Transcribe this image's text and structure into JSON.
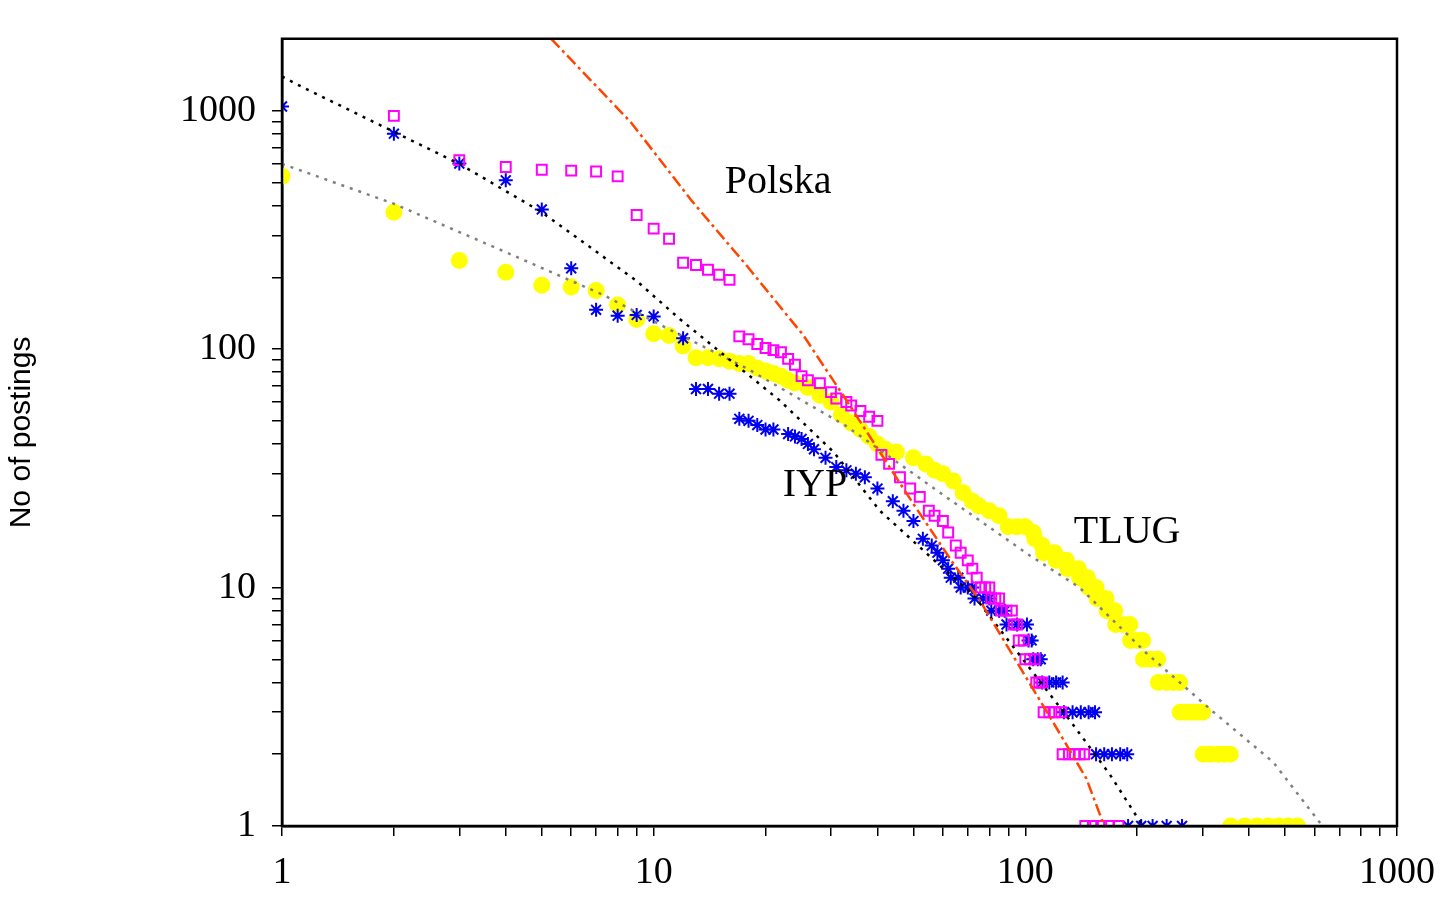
{
  "chart_data": {
    "type": "scatter",
    "ylabel": "No of postings",
    "log": "xy",
    "xlim": [
      1,
      1000
    ],
    "ylim": [
      1,
      2000
    ],
    "xticks": [
      1,
      {
        "value": 2,
        "label": null
      },
      {
        "value": 3,
        "label": null
      },
      {
        "value": 4,
        "label": null
      },
      {
        "value": 5,
        "label": null
      },
      {
        "value": 6,
        "label": null
      },
      {
        "value": 7,
        "label": null
      },
      {
        "value": 8,
        "label": null
      },
      {
        "value": 9,
        "label": null
      },
      10,
      {
        "value": 20,
        "label": null
      },
      {
        "value": 30,
        "label": null
      },
      {
        "value": 40,
        "label": null
      },
      {
        "value": 50,
        "label": null
      },
      {
        "value": 60,
        "label": null
      },
      {
        "value": 70,
        "label": null
      },
      {
        "value": 80,
        "label": null
      },
      {
        "value": 90,
        "label": null
      },
      100,
      {
        "value": 200,
        "label": null
      },
      {
        "value": 300,
        "label": null
      },
      {
        "value": 400,
        "label": null
      },
      {
        "value": 500,
        "label": null
      },
      {
        "value": 600,
        "label": null
      },
      {
        "value": 700,
        "label": null
      },
      {
        "value": 800,
        "label": null
      },
      {
        "value": 900,
        "label": null
      },
      1000
    ],
    "yticks": [
      1,
      {
        "value": 2,
        "label": null
      },
      {
        "value": 3,
        "label": null
      },
      {
        "value": 4,
        "label": null
      },
      {
        "value": 5,
        "label": null
      },
      {
        "value": 6,
        "label": null
      },
      {
        "value": 7,
        "label": null
      },
      {
        "value": 8,
        "label": null
      },
      {
        "value": 9,
        "label": null
      },
      10,
      {
        "value": 20,
        "label": null
      },
      {
        "value": 30,
        "label": null
      },
      {
        "value": 40,
        "label": null
      },
      {
        "value": 50,
        "label": null
      },
      {
        "value": 60,
        "label": null
      },
      {
        "value": 70,
        "label": null
      },
      {
        "value": 80,
        "label": null
      },
      {
        "value": 90,
        "label": null
      },
      100,
      {
        "value": 200,
        "label": null
      },
      {
        "value": 300,
        "label": null
      },
      {
        "value": 400,
        "label": null
      },
      {
        "value": 500,
        "label": null
      },
      {
        "value": 600,
        "label": null
      },
      {
        "value": 700,
        "label": null
      },
      {
        "value": 800,
        "label": null
      },
      {
        "value": 900,
        "label": null
      },
      1000
    ],
    "grid": false,
    "legend": false,
    "annotations": [
      "Polska",
      "IYP",
      "TLUG"
    ],
    "series": [
      {
        "type": "line",
        "color": "#ff4500",
        "line_style": "dashed",
        "marker": "none",
        "x": [
          5.3,
          8.7,
          12.7,
          17.7,
          25.3,
          33,
          40.6,
          49.9,
          63.6,
          75.5,
          92.5,
          118,
          146,
          163
        ],
        "values": [
          2000,
          890,
          416,
          226,
          114,
          61,
          37,
          22.5,
          12.8,
          8.8,
          5.2,
          2.77,
          1.58,
          1
        ]
      },
      {
        "type": "line",
        "color": "#000000",
        "line_style": "dotted",
        "marker": "none",
        "x": [
          1,
          1.14,
          3,
          5,
          9,
          11.8,
          21.8,
          30.5,
          40.6,
          58.8,
          72.5,
          96.6,
          129,
          169,
          207
        ],
        "values": [
          1390,
          1250,
          598,
          375,
          193,
          133,
          61,
          37,
          21,
          12.4,
          9.3,
          5.2,
          2.9,
          1.64,
          1
        ]
      },
      {
        "type": "line",
        "color": "#808080",
        "line_style": "dotted",
        "marker": "none",
        "x": [
          1,
          1.99,
          3.93,
          7.3,
          11,
          17.8,
          33,
          61.6,
          103,
          140,
          212,
          318,
          465,
          630
        ],
        "values": [
          598,
          408,
          258,
          169,
          121,
          83,
          47.5,
          23.8,
          13.6,
          10,
          5.3,
          3.04,
          1.85,
          1
        ]
      },
      {
        "color": "#ff00ff",
        "marker": "square",
        "x": [
          2,
          3,
          4,
          5,
          6,
          7,
          8,
          9,
          10,
          11,
          12,
          13,
          14,
          15,
          16,
          17,
          18,
          19,
          20,
          21,
          22,
          23,
          24,
          25,
          26,
          28,
          30,
          31,
          33,
          34,
          36,
          38,
          40,
          41,
          43,
          46,
          49,
          52,
          55,
          57,
          60,
          62,
          65,
          67,
          70,
          72,
          74,
          76,
          78,
          80,
          81,
          83,
          85,
          86,
          89,
          92,
          93,
          95,
          96,
          99,
          100,
          103,
          106,
          107,
          109,
          111,
          112,
          116,
          120,
          125,
          126,
          131,
          136,
          140,
          144,
          145,
          152,
          160,
          168,
          178
        ],
        "values": [
          950,
          620,
          580,
          565,
          560,
          555,
          530,
          365,
          320,
          290,
          230,
          225,
          215,
          205,
          195,
          113,
          110,
          105,
          101,
          99,
          97,
          91,
          86,
          77,
          74,
          72,
          66,
          62,
          60,
          58,
          55,
          52,
          50,
          36,
          33,
          29,
          26,
          24,
          21,
          20,
          19,
          17,
          15,
          14,
          13,
          12,
          11,
          10,
          10,
          10,
          9,
          9,
          9,
          8,
          8,
          8,
          7,
          7,
          6,
          6,
          5,
          5,
          5,
          4,
          4,
          4,
          3,
          3,
          3,
          3,
          2,
          2,
          2,
          2,
          2,
          1,
          1,
          1,
          1,
          1
        ]
      },
      {
        "color": "#0000ee",
        "marker": "cross",
        "x": [
          1,
          2,
          3,
          4,
          5,
          6,
          7,
          8,
          9,
          10,
          12,
          13,
          14,
          15,
          16,
          17,
          18,
          19,
          20,
          21,
          23,
          24,
          25,
          26,
          27,
          29,
          31,
          33,
          35,
          37,
          40,
          44,
          47,
          50,
          53,
          56,
          58,
          60,
          62,
          63,
          66,
          67,
          70,
          72,
          73,
          77,
          80,
          81,
          85,
          88,
          89,
          95,
          101,
          102,
          104,
          105,
          108,
          110,
          111,
          116,
          121,
          126,
          127,
          134,
          141,
          148,
          154,
          155,
          163,
          171,
          180,
          188,
          189,
          205,
          220,
          240,
          264
        ],
        "values": [
          1040,
          800,
          600,
          510,
          385,
          218,
          146,
          138,
          139,
          137,
          111,
          68,
          68,
          65,
          65,
          51,
          50,
          48,
          46,
          46,
          44,
          43,
          42,
          40,
          38,
          35,
          32,
          31,
          30,
          29,
          26,
          23,
          21,
          19,
          16,
          15,
          14,
          13,
          12,
          11,
          11,
          10,
          10,
          10,
          9,
          9,
          9,
          8,
          8,
          8,
          7,
          7,
          7,
          6,
          6,
          5,
          5,
          5,
          4,
          4,
          4,
          4,
          3,
          3,
          3,
          3,
          3,
          2,
          2,
          2,
          2,
          2,
          1,
          1,
          1,
          1,
          1
        ]
      },
      {
        "color": "#ffff00",
        "marker": "circle",
        "x": [
          1,
          2,
          3,
          4,
          5,
          6,
          7,
          8,
          9,
          10,
          11,
          12,
          13,
          14,
          15,
          16,
          17,
          18,
          19,
          20,
          21,
          22,
          23,
          24,
          26,
          28,
          30,
          32,
          34,
          36,
          38,
          40,
          42,
          45,
          50,
          54,
          57,
          60,
          64,
          68,
          72,
          75,
          80,
          85,
          90,
          95,
          100,
          105,
          106,
          111,
          112,
          120,
          121,
          129,
          130,
          139,
          140,
          147,
          148,
          155,
          156,
          165,
          166,
          174,
          175,
          183,
          191,
          192,
          200,
          207,
          208,
          217,
          227,
          228,
          240,
          250,
          260,
          261,
          270,
          280,
          290,
          300,
          301,
          315,
          330,
          343,
          356,
          357,
          390,
          420,
          450,
          480,
          510,
          540
        ],
        "values": [
          530,
          375,
          235,
          210,
          185,
          182,
          176,
          153,
          133,
          116,
          114,
          103,
          92,
          92,
          91,
          89,
          87,
          87,
          83,
          81,
          79,
          77,
          74,
          72,
          69,
          64,
          60,
          53,
          49,
          46,
          43,
          40,
          38,
          37,
          35,
          33,
          31,
          30,
          28,
          25,
          23,
          22,
          21,
          20,
          18,
          18,
          18,
          17,
          16,
          15,
          14,
          14,
          13,
          13,
          12,
          12,
          11,
          11,
          10,
          10,
          9,
          9,
          8,
          8,
          7,
          7,
          7,
          6,
          6,
          6,
          5,
          5,
          5,
          4,
          4,
          4,
          4,
          3,
          3,
          3,
          3,
          3,
          2,
          2,
          2,
          2,
          2,
          1,
          1,
          1,
          1,
          1,
          1,
          1
        ]
      }
    ]
  }
}
